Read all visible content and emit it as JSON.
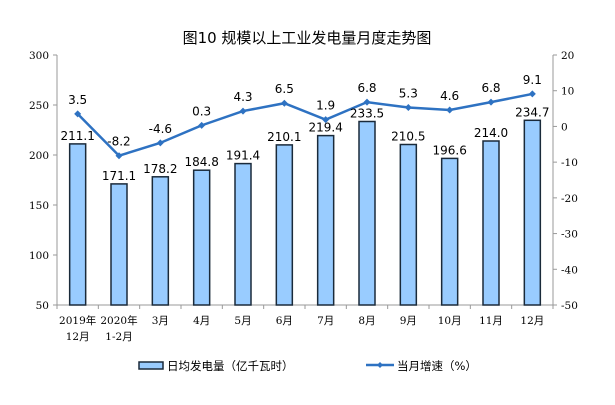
{
  "chart_data": {
    "type": "bar+line",
    "title": "图10  规模以上工业发电量月度走势图",
    "categories": [
      [
        "2019年",
        "12月"
      ],
      [
        "2020年",
        "1-2月"
      ],
      [
        "3月"
      ],
      [
        "4月"
      ],
      [
        "5月"
      ],
      [
        "6月"
      ],
      [
        "7月"
      ],
      [
        "8月"
      ],
      [
        "9月"
      ],
      [
        "10月"
      ],
      [
        "11月"
      ],
      [
        "12月"
      ]
    ],
    "series": [
      {
        "name": "日均发电量（亿千瓦时）",
        "type": "bar",
        "axis": "left",
        "values": [
          211.1,
          171.1,
          178.2,
          184.8,
          191.4,
          210.1,
          219.4,
          233.5,
          210.5,
          196.6,
          214.0,
          234.7
        ],
        "labels": [
          "211.1",
          "171.1",
          "178.2",
          "184.8",
          "191.4",
          "210.1",
          "219.4",
          "233.5",
          "210.5",
          "196.6",
          "214.0",
          "234.7"
        ]
      },
      {
        "name": "当月增速（%）",
        "type": "line",
        "axis": "right",
        "values": [
          3.5,
          -8.2,
          -4.6,
          0.3,
          4.3,
          6.5,
          1.9,
          6.8,
          5.3,
          4.6,
          6.8,
          9.1
        ],
        "labels": [
          "3.5",
          "-8.2",
          "-4.6",
          "0.3",
          "4.3",
          "6.5",
          "1.9",
          "6.8",
          "5.3",
          "4.6",
          "6.8",
          "9.1"
        ]
      }
    ],
    "left_axis": {
      "ylim": [
        50,
        300
      ],
      "ticks": [
        50,
        100,
        150,
        200,
        250,
        300
      ]
    },
    "right_axis": {
      "ylim": [
        -50,
        20
      ],
      "ticks": [
        -50,
        -40,
        -30,
        -20,
        -10,
        0,
        10,
        20
      ]
    },
    "grid": false,
    "legend_placement": "bottom",
    "colors": {
      "bar_fill": "#99ccff",
      "bar_stroke": "#1a2a3a",
      "line": "#2e72c2"
    }
  }
}
